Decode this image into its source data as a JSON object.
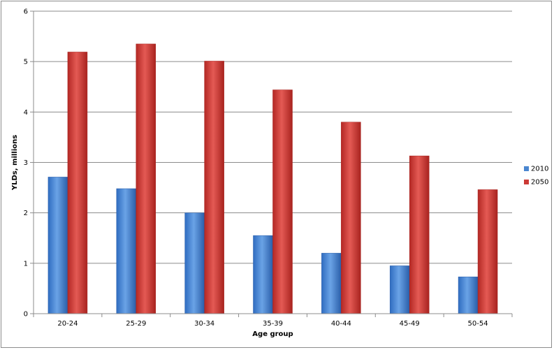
{
  "chart_data": {
    "type": "bar",
    "title": "",
    "xlabel": "Age group",
    "ylabel": "YLDs, millions",
    "ylim": [
      0,
      6
    ],
    "yticks": [
      0,
      1,
      2,
      3,
      4,
      5,
      6
    ],
    "grid": true,
    "legend_position": "right",
    "categories": [
      "20-24",
      "25-29",
      "30-34",
      "35-39",
      "40-44",
      "45-49",
      "50-54"
    ],
    "series": [
      {
        "name": "2010",
        "color": "#4a86d0",
        "values": [
          2.71,
          2.48,
          2.0,
          1.55,
          1.2,
          0.95,
          0.73
        ]
      },
      {
        "name": "2050",
        "color": "#cc3a36",
        "values": [
          5.19,
          5.35,
          5.01,
          4.44,
          3.8,
          3.13,
          2.46
        ]
      }
    ]
  }
}
